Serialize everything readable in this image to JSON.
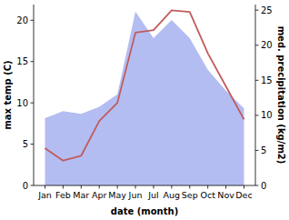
{
  "chart_data": {
    "type": "line",
    "xlabel": "date (month)",
    "ylabel": "max temp (C)",
    "y2label": "med. precipitation (kg/m2)",
    "categories": [
      "Jan",
      "Feb",
      "Mar",
      "Apr",
      "May",
      "Jun",
      "Jul",
      "Aug",
      "Sep",
      "Oct",
      "Nov",
      "Dec"
    ],
    "series": [
      {
        "type": "line",
        "color": "#c25b5b",
        "axis": "y",
        "values": [
          4.5,
          3.0,
          3.6,
          7.8,
          10.0,
          18.5,
          18.8,
          21.2,
          21.0,
          16.0,
          12.0,
          8.0
        ]
      },
      {
        "type": "area",
        "color": "#b3bdf2",
        "axis": "y2",
        "values": [
          9.6,
          10.6,
          10.2,
          11.2,
          13.0,
          24.8,
          21.0,
          23.6,
          21.0,
          16.5,
          13.5,
          11.0
        ]
      }
    ],
    "ylim": [
      0,
      21.9
    ],
    "yticks": [
      0,
      5,
      10,
      15,
      20
    ],
    "y2lim": [
      0,
      25.8
    ],
    "y2ticks": [
      0,
      5,
      10,
      15,
      20,
      25
    ],
    "grid": false
  }
}
